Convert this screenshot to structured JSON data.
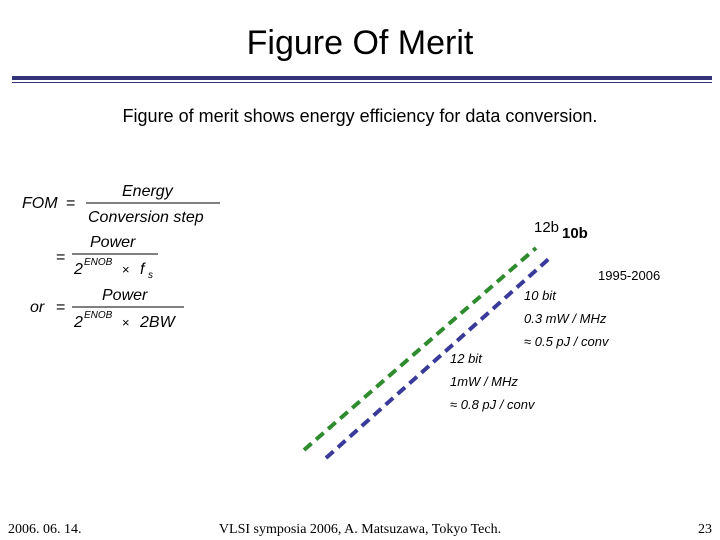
{
  "slide": {
    "title": "Figure Of Merit",
    "subtitle": "Figure of merit shows energy efficiency for data conversion."
  },
  "formula": {
    "lhs": "FOM",
    "eq": "=",
    "line1_num": "Energy",
    "line1_den": "Conversion  step",
    "line2_num": "Power",
    "line2_den_base": "2",
    "line2_den_exp": "ENOB",
    "line2_den_times": "×",
    "line2_den_f": "f",
    "line2_den_sub": "s",
    "line3_or": "or",
    "line3_num": "Power",
    "line3_den_base": "2",
    "line3_den_exp": "ENOB",
    "line3_den_times": "×",
    "line3_den_rest": "2BW"
  },
  "chart": {
    "label_12b": "12b",
    "label_10b": "10b",
    "period": "1995-2006",
    "annot_10bit": [
      "10 bit",
      "0.3 mW / MHz",
      "≈ 0.5 pJ / conv"
    ],
    "annot_12bit": [
      "12 bit",
      "1mW / MHz",
      "≈ 0.8 pJ / conv"
    ],
    "colors": {
      "line_12b": "#2e8b2e",
      "line_10b": "#3a3a9a"
    }
  },
  "footer": {
    "date": "2006. 06. 14.",
    "center": "VLSI symposia 2006,  A. Matsuzawa, Tokyo Tech.",
    "page": "23"
  }
}
